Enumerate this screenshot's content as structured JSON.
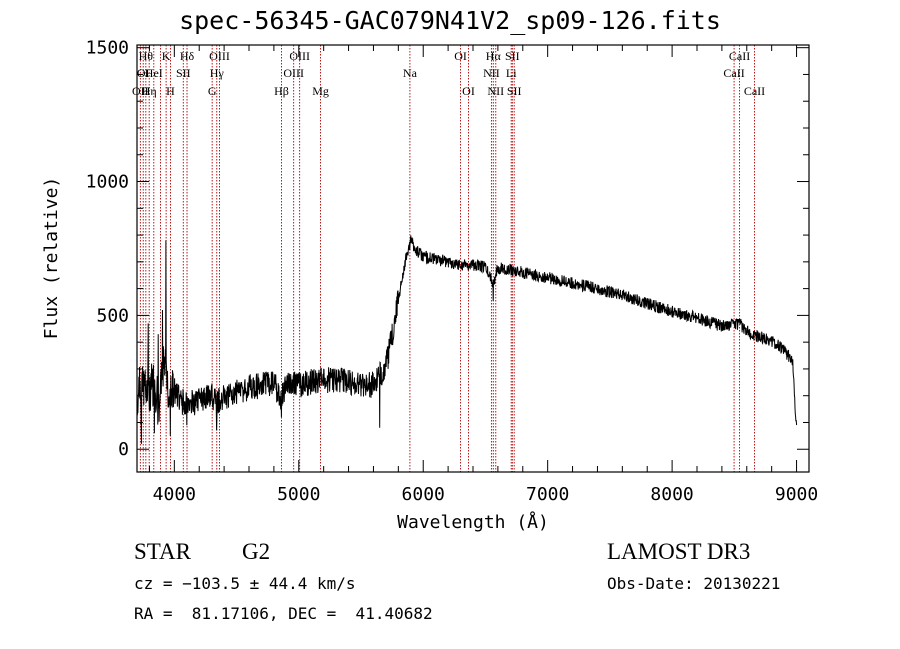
{
  "chart_data": {
    "type": "line",
    "title": "spec-56345-GAC079N41V2_sp09-126.fits",
    "xlabel": "Wavelength (Å)",
    "ylabel": "Flux (relative)",
    "xlim": [
      3700,
      9100
    ],
    "ylim": [
      -85,
      1510
    ],
    "x_ticks": [
      4000,
      5000,
      6000,
      7000,
      8000,
      9000
    ],
    "x_tick_labels": [
      "4000",
      "5000",
      "6000",
      "7000",
      "8000",
      "9000"
    ],
    "y_ticks": [
      0,
      500,
      1000,
      1500
    ],
    "y_tick_labels": [
      "0",
      "500",
      "1000",
      "1500"
    ],
    "series": [
      {
        "name": "spectrum",
        "color": "#000000",
        "x": [
          3700,
          3760,
          3820,
          3880,
          3920,
          3960,
          4000,
          4050,
          4100,
          4200,
          4300,
          4340,
          4400,
          4500,
          4600,
          4700,
          4800,
          4861,
          4900,
          5000,
          5100,
          5200,
          5300,
          5400,
          5500,
          5600,
          5700,
          5750,
          5800,
          5850,
          5900,
          5950,
          6000,
          6100,
          6200,
          6300,
          6400,
          6500,
          6563,
          6600,
          6700,
          6800,
          6900,
          7000,
          7200,
          7400,
          7600,
          7800,
          8000,
          8200,
          8400,
          8542,
          8600,
          8700,
          8800,
          8900,
          8970,
          8990,
          9000
        ],
        "y": [
          200,
          260,
          230,
          180,
          320,
          200,
          220,
          180,
          170,
          180,
          200,
          175,
          195,
          210,
          230,
          240,
          250,
          180,
          260,
          240,
          250,
          255,
          260,
          250,
          245,
          240,
          310,
          420,
          560,
          690,
          780,
          740,
          720,
          710,
          700,
          690,
          690,
          680,
          620,
          680,
          670,
          660,
          650,
          640,
          620,
          600,
          575,
          545,
          515,
          490,
          460,
          470,
          440,
          420,
          405,
          370,
          330,
          150,
          90
        ],
        "jitter": 38,
        "spikes": [
          {
            "x": 3735,
            "y": 20
          },
          {
            "x": 3790,
            "y": 470
          },
          {
            "x": 3840,
            "y": 60
          },
          {
            "x": 3870,
            "y": 430
          },
          {
            "x": 3905,
            "y": 520
          },
          {
            "x": 3933,
            "y": 780
          },
          {
            "x": 3968,
            "y": 50
          },
          {
            "x": 4101,
            "y": 90
          },
          {
            "x": 4340,
            "y": 70
          },
          {
            "x": 4861,
            "y": 120
          },
          {
            "x": 5650,
            "y": 80
          },
          {
            "x": 6563,
            "y": 555
          }
        ]
      }
    ],
    "reference_lines": {
      "color": "#b00000",
      "lines": [
        {
          "x": 3727,
          "label": "OII",
          "row": 2
        },
        {
          "x": 3750,
          "label": "OI",
          "row": 1
        },
        {
          "x": 3771,
          "label": "Hθ",
          "row": 0
        },
        {
          "x": 3798,
          "label": "Hη",
          "row": 2
        },
        {
          "x": 3835,
          "label": "HeI",
          "row": 1
        },
        {
          "x": 3889,
          "label": "",
          "row": 0
        },
        {
          "x": 3934,
          "label": "K",
          "row": 0
        },
        {
          "x": 3969,
          "label": "H",
          "row": 2
        },
        {
          "x": 4072,
          "label": "SII",
          "row": 1
        },
        {
          "x": 4102,
          "label": "Hδ",
          "row": 0
        },
        {
          "x": 4304,
          "label": "G",
          "row": 2
        },
        {
          "x": 4341,
          "label": "Hγ",
          "row": 1
        },
        {
          "x": 4363,
          "label": "OIII",
          "row": 0
        },
        {
          "x": 4861,
          "label": "Hβ",
          "row": 2
        },
        {
          "x": 4959,
          "label": "OIII",
          "row": 1
        },
        {
          "x": 5007,
          "label": "OIII",
          "row": 0
        },
        {
          "x": 5175,
          "label": "Mg",
          "row": 2
        },
        {
          "x": 5893,
          "label": "Na",
          "row": 1
        },
        {
          "x": 6300,
          "label": "OI",
          "row": 0
        },
        {
          "x": 6364,
          "label": "OI",
          "row": 2
        },
        {
          "x": 6548,
          "label": "NII",
          "row": 1
        },
        {
          "x": 6563,
          "label": "Hα",
          "row": 0
        },
        {
          "x": 6583,
          "label": "NII",
          "row": 2
        },
        {
          "x": 6707,
          "label": "Li",
          "row": 1
        },
        {
          "x": 6716,
          "label": "SII",
          "row": 0
        },
        {
          "x": 6731,
          "label": "SII",
          "row": 2
        },
        {
          "x": 8498,
          "label": "CaII",
          "row": 1
        },
        {
          "x": 8542,
          "label": "CaII",
          "row": 0
        },
        {
          "x": 8662,
          "label": "CaII",
          "row": 2
        }
      ]
    },
    "grid": false,
    "legend": "none"
  },
  "info": {
    "object_class": "STAR",
    "subclass": "G2",
    "survey": "LAMOST DR3",
    "velocity": "cz = −103.5 ± 44.4 km/s",
    "obs_date": "Obs-Date: 20130221",
    "coordinates": "RA =  81.17106, DEC =  41.40682"
  }
}
